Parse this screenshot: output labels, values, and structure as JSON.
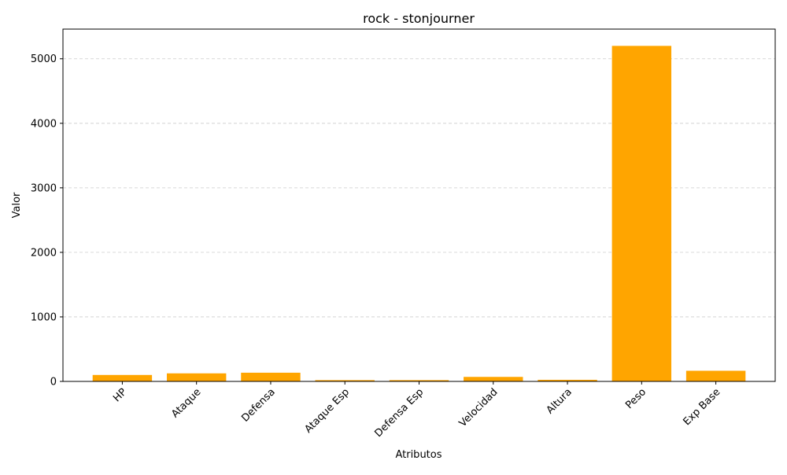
{
  "chart_data": {
    "type": "bar",
    "title": "rock - stonjourner",
    "xlabel": "Atributos",
    "ylabel": "Valor",
    "categories": [
      "HP",
      "Ataque",
      "Defensa",
      "Ataque Esp",
      "Defensa Esp",
      "Velocidad",
      "Altura",
      "Peso",
      "Exp Base"
    ],
    "values": [
      100,
      125,
      135,
      20,
      20,
      70,
      25,
      5200,
      165
    ],
    "ylim": [
      0,
      5460
    ],
    "yticks": [
      0,
      1000,
      2000,
      3000,
      4000,
      5000
    ],
    "grid": "y-dashed",
    "legend": "none",
    "bar_color": "#FFA500",
    "grid_color": "#cccccc"
  }
}
